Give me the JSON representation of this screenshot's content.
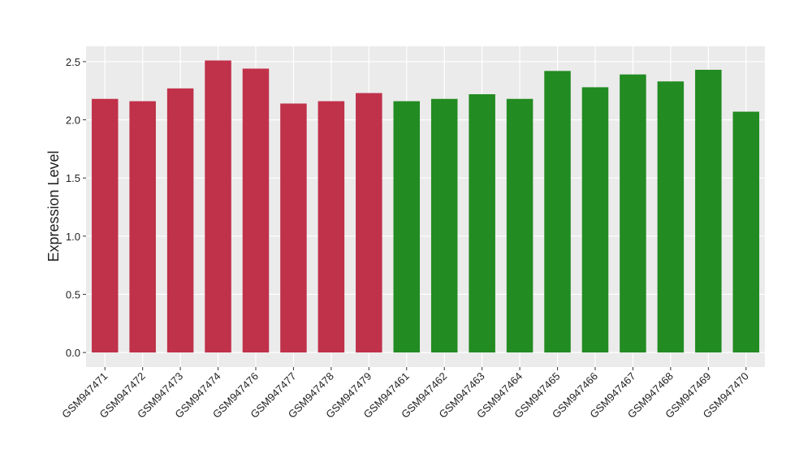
{
  "chart_data": {
    "type": "bar",
    "y_label": "Expression Level",
    "categories": [
      "GSM947471",
      "GSM947472",
      "GSM947473",
      "GSM947474",
      "GSM947476",
      "GSM947477",
      "GSM947478",
      "GSM947479",
      "GSM947461",
      "GSM947462",
      "GSM947463",
      "GSM947464",
      "GSM947465",
      "GSM947466",
      "GSM947467",
      "GSM947468",
      "GSM947469",
      "GSM947470"
    ],
    "values": [
      2.18,
      2.16,
      2.27,
      2.51,
      2.44,
      2.14,
      2.16,
      2.23,
      2.16,
      2.18,
      2.22,
      2.18,
      2.42,
      2.28,
      2.39,
      2.33,
      2.43,
      2.07
    ],
    "colors": [
      "#c0314a",
      "#c0314a",
      "#c0314a",
      "#c0314a",
      "#c0314a",
      "#c0314a",
      "#c0314a",
      "#c0314a",
      "#228b22",
      "#228b22",
      "#228b22",
      "#228b22",
      "#228b22",
      "#228b22",
      "#228b22",
      "#228b22",
      "#228b22",
      "#228b22"
    ],
    "ylim": [
      -0.125,
      2.632
    ],
    "yticks": [
      {
        "value": 0,
        "label": "0.0"
      },
      0.5,
      {
        "value": 1,
        "label": "1.0"
      },
      1.5,
      {
        "value": 2,
        "label": "2.0"
      },
      2.5
    ],
    "grid": true
  }
}
